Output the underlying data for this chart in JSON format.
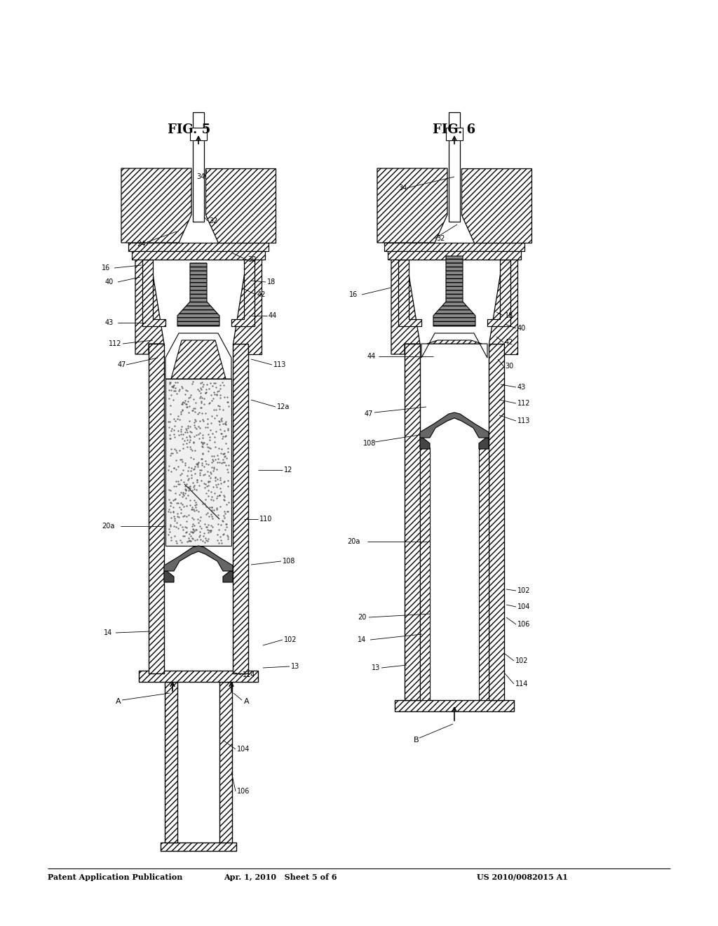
{
  "title_left": "Patent Application Publication",
  "title_center": "Apr. 1, 2010   Sheet 5 of 6",
  "title_right": "US 2010/0082015 A1",
  "fig5_label": "FIG. 5",
  "fig6_label": "FIG. 6",
  "bg": "#ffffff"
}
